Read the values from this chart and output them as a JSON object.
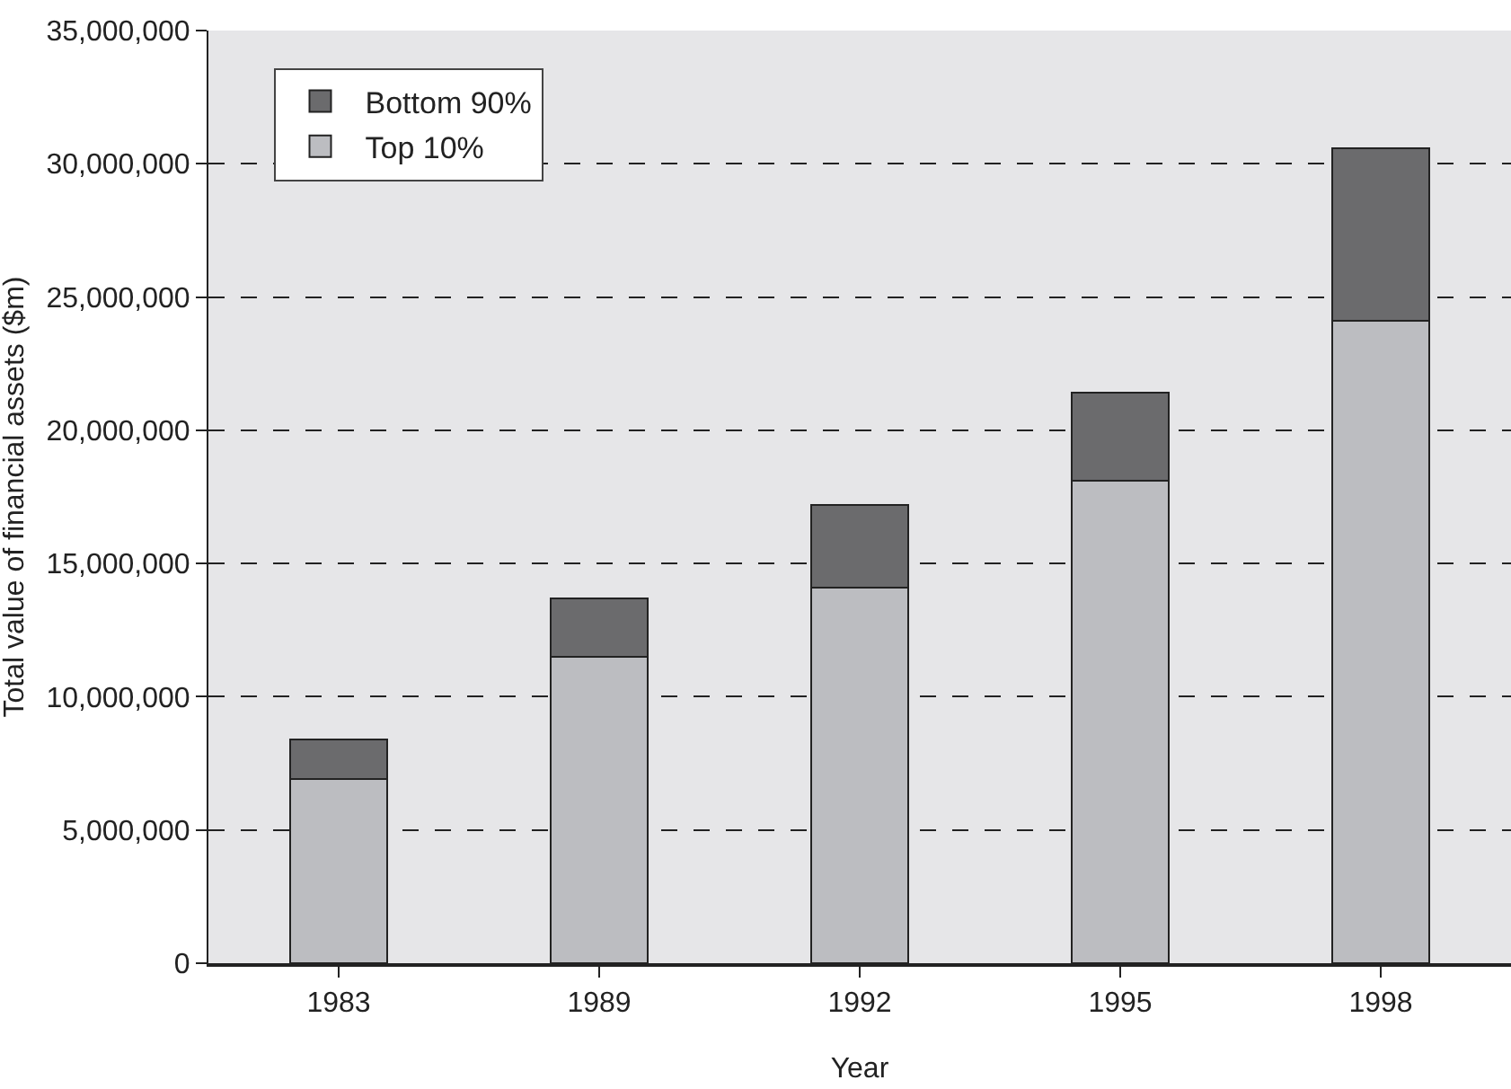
{
  "chart_data": {
    "type": "bar",
    "stacked": true,
    "xlabel": "Year",
    "ylabel": "Total value of financial assets ($m)",
    "categories": [
      "1983",
      "1989",
      "1992",
      "1995",
      "1998"
    ],
    "series": [
      {
        "name": "Top 10%",
        "color": "#bcbdc1",
        "values": [
          6900000,
          11500000,
          14100000,
          18100000,
          24100000
        ]
      },
      {
        "name": "Bottom 90%",
        "color": "#6b6b6d",
        "values": [
          1500000,
          2200000,
          3100000,
          3300000,
          6500000
        ]
      }
    ],
    "ylim": [
      0,
      35000000
    ],
    "yticks": [
      {
        "value": 0,
        "label": "0"
      },
      {
        "value": 5000000,
        "label": "5,000,000"
      },
      {
        "value": 10000000,
        "label": "10,000,000"
      },
      {
        "value": 15000000,
        "label": "15,000,000"
      },
      {
        "value": 20000000,
        "label": "20,000,000"
      },
      {
        "value": 25000000,
        "label": "25,000,000"
      },
      {
        "value": 30000000,
        "label": "30,000,000"
      },
      {
        "value": 35000000,
        "label": "35,000,000"
      }
    ],
    "grid": "y",
    "line_style": "dashed",
    "legend": "top left"
  }
}
